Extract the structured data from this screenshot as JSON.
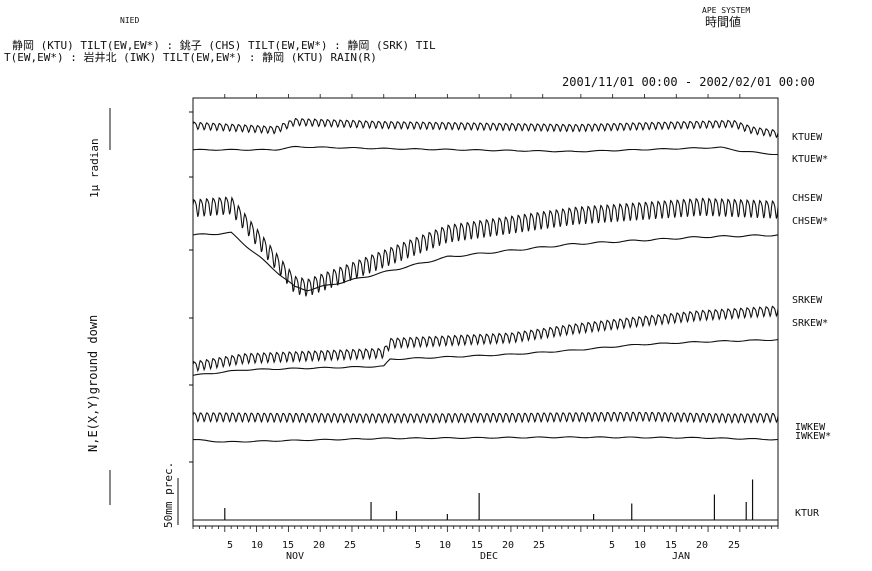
{
  "header": {
    "org": "NIED",
    "system": "APE SYSTEM",
    "value_type": "時間値",
    "line1": "静岡 (KTU) TILT(EW,EW*) : 銚子 (CHS) TILT(EW,EW*) : 静岡 (SRK) TIL",
    "line2": "T(EW,EW*) : 岩井北 (IWK) TILT(EW,EW*) : 静岡 (KTU) RAIN(R)",
    "period": "2001/11/01 00:00 - 2002/02/01 00:00"
  },
  "colors": {
    "ink": "#111111",
    "background": "#ffffff"
  },
  "chart_data": {
    "type": "line",
    "title": "",
    "ylabel_tilt": "N,E(X,Y)ground down",
    "scale_tilt": "1μ radian",
    "scale_rain": "50mm prec.",
    "xlim": [
      "2001-11-01",
      "2002-02-01"
    ],
    "month_labels": [
      "NOV",
      "DEC",
      "JAN"
    ],
    "tick_labels": [
      "5",
      "10",
      "15",
      "20",
      "25",
      "5",
      "10",
      "15",
      "20",
      "25",
      "5",
      "10",
      "15",
      "20",
      "25"
    ],
    "tick_days": [
      5,
      10,
      15,
      20,
      25,
      35,
      40,
      45,
      50,
      55,
      66,
      71,
      76,
      81,
      86
    ],
    "series": [
      {
        "name": "KTUEW",
        "baseline": [
          0,
          1.0,
          13,
          0.25,
          16,
          1.6,
          30,
          1.1,
          60,
          0.6,
          85,
          1.3,
          88,
          0.2,
          92,
          -0.4
        ],
        "diurnal": 0.55
      },
      {
        "name": "KTUEW*",
        "baseline": [
          0,
          0.2,
          13,
          0.2,
          16,
          0.7,
          30,
          0.4,
          60,
          -0.1,
          83,
          0.6,
          86,
          0.0,
          92,
          -0.6
        ],
        "diurnal": 0
      },
      {
        "name": "CHSEW",
        "baseline": [
          0,
          0.2,
          6,
          0.4,
          16,
          -4.9,
          18,
          -5.1,
          25,
          -4.0,
          40,
          -1.5,
          60,
          -0.3,
          80,
          0.3,
          92,
          0.1
        ],
        "diurnal": 0.55
      },
      {
        "name": "CHSEW*",
        "baseline": [
          0,
          -1.0,
          6,
          -0.8,
          16,
          -6.2,
          18,
          -6.5,
          25,
          -5.5,
          40,
          -3.2,
          60,
          -1.9,
          80,
          -1.2,
          92,
          -1.0
        ],
        "diurnal": 0
      },
      {
        "name": "SRKEW",
        "baseline": [
          0,
          -1.2,
          8,
          -0.3,
          30,
          0.3,
          31,
          1.4,
          50,
          2.0,
          60,
          3.0,
          70,
          3.8,
          80,
          4.5,
          92,
          5.0
        ],
        "diurnal": 0.5
      },
      {
        "name": "SRKEW*",
        "baseline": [
          0,
          -2.2,
          8,
          -1.4,
          30,
          -0.9,
          31,
          0.1,
          50,
          0.8,
          60,
          1.4,
          70,
          2.2,
          80,
          2.6,
          92,
          2.9
        ],
        "diurnal": 0
      },
      {
        "name": "IWKEW",
        "baseline": [
          0,
          0.6,
          30,
          0.4,
          50,
          0.5,
          60,
          0.6,
          70,
          0.7,
          85,
          0.4,
          92,
          0.5
        ],
        "diurnal": 0.7
      },
      {
        "name": "IWKEW*",
        "baseline": [
          0,
          -0.6,
          5,
          -1.0,
          30,
          -0.4,
          60,
          -0.2,
          80,
          -0.3,
          92,
          -0.6
        ],
        "diurnal": 0
      },
      {
        "name": "KTUR",
        "rain_spikes": [
          [
            5,
            8
          ],
          [
            28,
            12
          ],
          [
            32,
            6
          ],
          [
            40,
            4
          ],
          [
            45,
            18
          ],
          [
            63,
            4
          ],
          [
            69,
            11
          ],
          [
            82,
            17
          ],
          [
            87,
            12
          ],
          [
            88,
            27
          ]
        ]
      }
    ],
    "channel_labels": [
      "KTUEW",
      "KTUEW*",
      "CHSEW",
      "CHSEW*",
      "SRKEW",
      "SRKEW*",
      "IWKEW",
      "IWKEW*",
      "KTUR"
    ]
  }
}
